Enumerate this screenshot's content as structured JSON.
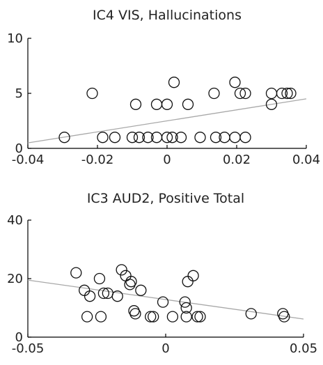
{
  "chart_data": [
    {
      "type": "scatter",
      "title": "IC4 VIS, Hallucinations",
      "xlim": [
        -0.04,
        0.04
      ],
      "ylim": [
        0,
        10
      ],
      "xticks": [
        -0.04,
        -0.02,
        0,
        0.02,
        0.04
      ],
      "xtick_labels": [
        "-0.04",
        "-0.02",
        "0",
        "0.02",
        "0.04"
      ],
      "yticks": [
        0,
        5,
        10
      ],
      "ytick_labels": [
        "0",
        "5",
        "10"
      ],
      "points": [
        [
          -0.0295,
          1
        ],
        [
          -0.0215,
          5
        ],
        [
          -0.0185,
          1
        ],
        [
          -0.015,
          1
        ],
        [
          -0.01,
          1
        ],
        [
          -0.009,
          4
        ],
        [
          -0.008,
          1
        ],
        [
          -0.0055,
          1
        ],
        [
          -0.003,
          4
        ],
        [
          -0.003,
          1
        ],
        [
          0.0,
          4
        ],
        [
          0.0,
          1
        ],
        [
          0.0015,
          1
        ],
        [
          0.002,
          6
        ],
        [
          0.004,
          1
        ],
        [
          0.006,
          4
        ],
        [
          0.0095,
          1
        ],
        [
          0.0135,
          5
        ],
        [
          0.014,
          1
        ],
        [
          0.0165,
          1
        ],
        [
          0.0195,
          1
        ],
        [
          0.0195,
          6
        ],
        [
          0.021,
          5
        ],
        [
          0.0225,
          5
        ],
        [
          0.0225,
          1
        ],
        [
          0.03,
          5
        ],
        [
          0.03,
          4
        ],
        [
          0.033,
          5
        ],
        [
          0.0345,
          5
        ],
        [
          0.0355,
          5
        ]
      ],
      "fit_line": [
        [
          -0.04,
          0.5
        ],
        [
          0.04,
          4.5
        ]
      ]
    },
    {
      "type": "scatter",
      "title": "IC3 AUD2, Positive Total",
      "xlim": [
        -0.05,
        0.05
      ],
      "ylim": [
        0,
        40
      ],
      "xticks": [
        -0.05,
        0,
        0.05
      ],
      "xtick_labels": [
        "-0.05",
        "0",
        "0.05"
      ],
      "yticks": [
        0,
        20,
        40
      ],
      "ytick_labels": [
        "0",
        "20",
        "40"
      ],
      "points": [
        [
          -0.0325,
          22
        ],
        [
          -0.0295,
          16
        ],
        [
          -0.0285,
          7
        ],
        [
          -0.0275,
          14
        ],
        [
          -0.024,
          20
        ],
        [
          -0.0235,
          7
        ],
        [
          -0.0225,
          15
        ],
        [
          -0.021,
          15
        ],
        [
          -0.0175,
          14
        ],
        [
          -0.016,
          23
        ],
        [
          -0.0145,
          21
        ],
        [
          -0.013,
          18
        ],
        [
          -0.0125,
          19
        ],
        [
          -0.0115,
          9
        ],
        [
          -0.011,
          8
        ],
        [
          -0.009,
          16
        ],
        [
          -0.0055,
          7
        ],
        [
          -0.0045,
          7
        ],
        [
          -0.001,
          12
        ],
        [
          0.0025,
          7
        ],
        [
          0.007,
          12
        ],
        [
          0.0075,
          10
        ],
        [
          0.008,
          19
        ],
        [
          0.01,
          21
        ],
        [
          0.0115,
          7
        ],
        [
          0.0125,
          7
        ],
        [
          0.0075,
          7
        ],
        [
          0.031,
          8
        ],
        [
          0.0425,
          8
        ],
        [
          0.043,
          7
        ]
      ],
      "fit_line": [
        [
          -0.05,
          19.5
        ],
        [
          0.05,
          6.2
        ]
      ]
    }
  ]
}
